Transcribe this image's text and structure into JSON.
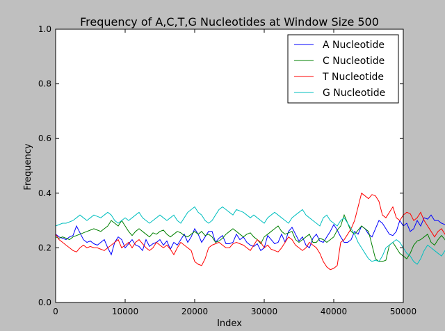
{
  "chart_data": {
    "type": "line",
    "title": "Frequency of A,C,T,G Nucleotides at Window Size 500",
    "xlabel": "Index",
    "ylabel": "Frequency",
    "xlim": [
      0,
      50000
    ],
    "ylim": [
      0.0,
      1.0
    ],
    "xticks": [
      0,
      10000,
      20000,
      30000,
      40000,
      50000
    ],
    "xtick_labels": [
      "0",
      "10000",
      "20000",
      "30000",
      "40000",
      "50000"
    ],
    "yticks": [
      0.0,
      0.2,
      0.4,
      0.6,
      0.8,
      1.0
    ],
    "ytick_labels": [
      "0.0",
      "0.2",
      "0.4",
      "0.6",
      "0.8",
      "1.0"
    ],
    "grid": false,
    "legend_position": "top-right",
    "x_step": 500,
    "series": [
      {
        "name": "A Nucleotide",
        "color": "#0000ff",
        "values": [
          0.25,
          0.24,
          0.235,
          0.23,
          0.24,
          0.245,
          0.28,
          0.255,
          0.23,
          0.22,
          0.225,
          0.215,
          0.21,
          0.22,
          0.23,
          0.2,
          0.175,
          0.22,
          0.24,
          0.23,
          0.2,
          0.215,
          0.23,
          0.21,
          0.205,
          0.19,
          0.23,
          0.205,
          0.215,
          0.22,
          0.23,
          0.21,
          0.225,
          0.195,
          0.22,
          0.21,
          0.23,
          0.25,
          0.22,
          0.24,
          0.27,
          0.25,
          0.22,
          0.24,
          0.26,
          0.26,
          0.22,
          0.235,
          0.245,
          0.215,
          0.215,
          0.22,
          0.25,
          0.23,
          0.24,
          0.22,
          0.21,
          0.205,
          0.215,
          0.19,
          0.2,
          0.245,
          0.23,
          0.215,
          0.22,
          0.25,
          0.22,
          0.26,
          0.275,
          0.25,
          0.225,
          0.24,
          0.21,
          0.2,
          0.235,
          0.25,
          0.225,
          0.22,
          0.24,
          0.26,
          0.285,
          0.265,
          0.24,
          0.22,
          0.22,
          0.23,
          0.26,
          0.25,
          0.28,
          0.27,
          0.25,
          0.24,
          0.27,
          0.3,
          0.29,
          0.27,
          0.25,
          0.245,
          0.26,
          0.3,
          0.28,
          0.29,
          0.26,
          0.27,
          0.3,
          0.28,
          0.31,
          0.305,
          0.32,
          0.3,
          0.3,
          0.29,
          0.285,
          0.28,
          0.27,
          0.265,
          0.285,
          0.27,
          0.25,
          0.24,
          0.25,
          0.22,
          0.23,
          0.245,
          0.25,
          0.24,
          0.225,
          0.215,
          0.23,
          0.24,
          0.26,
          0.27,
          0.25,
          0.23,
          0.22,
          0.225,
          0.215,
          0.23,
          0.245,
          0.24,
          0.26,
          0.27,
          0.25,
          0.23,
          0.24,
          0.22,
          0.235,
          0.25,
          0.27,
          0.28,
          0.275,
          0.26,
          0.25,
          0.23,
          0.24,
          0.27,
          0.3,
          0.31,
          0.33,
          0.31,
          0.3,
          0.285,
          0.28,
          0.29,
          0.32,
          0.315,
          0.3,
          0.29,
          0.27,
          0.26,
          0.245,
          0.235,
          0.25,
          0.27,
          0.29,
          0.3,
          0.31,
          0.32,
          0.33,
          0.34,
          0.33,
          0.32,
          0.31,
          0.3,
          0.29,
          0.29,
          0.28,
          0.27,
          0.26,
          0.28,
          0.27,
          0.26,
          0.275,
          0.285,
          0.29,
          0.3,
          0.31,
          0.28,
          0.23
        ]
      },
      {
        "name": "C Nucleotide",
        "color": "#008000",
        "values": [
          0.24,
          0.235,
          0.24,
          0.235,
          0.23,
          0.24,
          0.245,
          0.25,
          0.255,
          0.26,
          0.265,
          0.27,
          0.265,
          0.26,
          0.27,
          0.28,
          0.3,
          0.29,
          0.28,
          0.3,
          0.28,
          0.26,
          0.245,
          0.26,
          0.27,
          0.26,
          0.25,
          0.24,
          0.255,
          0.25,
          0.26,
          0.265,
          0.25,
          0.24,
          0.25,
          0.26,
          0.255,
          0.245,
          0.24,
          0.25,
          0.26,
          0.25,
          0.26,
          0.245,
          0.25,
          0.24,
          0.22,
          0.225,
          0.235,
          0.25,
          0.26,
          0.27,
          0.26,
          0.25,
          0.24,
          0.25,
          0.255,
          0.24,
          0.23,
          0.215,
          0.24,
          0.25,
          0.26,
          0.27,
          0.28,
          0.26,
          0.25,
          0.255,
          0.26,
          0.23,
          0.22,
          0.23,
          0.24,
          0.25,
          0.22,
          0.22,
          0.235,
          0.23,
          0.22,
          0.23,
          0.24,
          0.265,
          0.28,
          0.32,
          0.29,
          0.26,
          0.25,
          0.265,
          0.28,
          0.27,
          0.26,
          0.21,
          0.16,
          0.15,
          0.15,
          0.155,
          0.21,
          0.22,
          0.2,
          0.18,
          0.17,
          0.16,
          0.18,
          0.21,
          0.225,
          0.23,
          0.24,
          0.25,
          0.22,
          0.21,
          0.23,
          0.245,
          0.23,
          0.2,
          0.18,
          0.24,
          0.29,
          0.23,
          0.2,
          0.21,
          0.22,
          0.25,
          0.26,
          0.24,
          0.23,
          0.22,
          0.21,
          0.22,
          0.25,
          0.24,
          0.21,
          0.2,
          0.22,
          0.24,
          0.26,
          0.25,
          0.17,
          0.18,
          0.23,
          0.25,
          0.22,
          0.21,
          0.2,
          0.23,
          0.24,
          0.22,
          0.23,
          0.24,
          0.245,
          0.23,
          0.21,
          0.22,
          0.235,
          0.22,
          0.21,
          0.2,
          0.24,
          0.26,
          0.25,
          0.27,
          0.26,
          0.24,
          0.22,
          0.21,
          0.2,
          0.22,
          0.25,
          0.24,
          0.23,
          0.22,
          0.2,
          0.18,
          0.2,
          0.22,
          0.23,
          0.22,
          0.21,
          0.2,
          0.195,
          0.21,
          0.24,
          0.25,
          0.23,
          0.22,
          0.21,
          0.2,
          0.21,
          0.22,
          0.2,
          0.19,
          0.21,
          0.23,
          0.25,
          0.24,
          0.23,
          0.21,
          0.19,
          0.17,
          0.165,
          0.17,
          0.18,
          0.19
        ]
      },
      {
        "name": "T Nucleotide",
        "color": "#ff0000",
        "values": [
          0.25,
          0.23,
          0.22,
          0.21,
          0.2,
          0.19,
          0.185,
          0.2,
          0.21,
          0.2,
          0.205,
          0.2,
          0.2,
          0.195,
          0.19,
          0.2,
          0.21,
          0.22,
          0.23,
          0.2,
          0.21,
          0.22,
          0.2,
          0.22,
          0.23,
          0.215,
          0.2,
          0.19,
          0.2,
          0.22,
          0.21,
          0.2,
          0.21,
          0.195,
          0.175,
          0.2,
          0.22,
          0.21,
          0.2,
          0.19,
          0.15,
          0.14,
          0.135,
          0.16,
          0.2,
          0.21,
          0.215,
          0.22,
          0.21,
          0.2,
          0.2,
          0.215,
          0.22,
          0.215,
          0.21,
          0.2,
          0.19,
          0.21,
          0.23,
          0.22,
          0.2,
          0.21,
          0.195,
          0.19,
          0.185,
          0.2,
          0.22,
          0.24,
          0.23,
          0.21,
          0.2,
          0.19,
          0.2,
          0.22,
          0.21,
          0.2,
          0.18,
          0.15,
          0.13,
          0.12,
          0.125,
          0.135,
          0.22,
          0.23,
          0.25,
          0.27,
          0.3,
          0.35,
          0.4,
          0.39,
          0.38,
          0.395,
          0.39,
          0.37,
          0.32,
          0.31,
          0.33,
          0.35,
          0.31,
          0.3,
          0.32,
          0.33,
          0.325,
          0.3,
          0.31,
          0.33,
          0.3,
          0.28,
          0.26,
          0.24,
          0.26,
          0.27,
          0.25,
          0.23,
          0.24,
          0.26,
          0.28,
          0.27,
          0.26,
          0.25,
          0.27,
          0.29,
          0.3,
          0.33,
          0.32,
          0.31,
          0.3,
          0.32,
          0.31,
          0.3,
          0.28,
          0.26,
          0.3,
          0.31,
          0.29,
          0.27,
          0.26,
          0.24,
          0.23,
          0.26,
          0.27,
          0.25,
          0.22,
          0.2,
          0.24,
          0.245,
          0.22,
          0.21,
          0.2,
          0.22,
          0.215,
          0.18,
          0.165,
          0.2,
          0.22,
          0.21,
          0.23,
          0.22,
          0.21,
          0.2,
          0.22,
          0.23,
          0.26,
          0.29,
          0.3,
          0.32,
          0.34,
          0.35,
          0.33,
          0.3,
          0.28,
          0.31,
          0.32,
          0.3,
          0.27,
          0.25,
          0.24,
          0.22,
          0.215,
          0.2,
          0.19,
          0.195,
          0.21,
          0.23,
          0.25,
          0.27,
          0.3,
          0.31,
          0.33,
          0.3,
          0.28,
          0.27,
          0.26,
          0.28,
          0.3,
          0.32,
          0.35,
          0.33,
          0.31,
          0.33,
          0.35
        ]
      },
      {
        "name": "G Nucleotide",
        "color": "#00bfbf",
        "values": [
          0.28,
          0.285,
          0.29,
          0.29,
          0.295,
          0.3,
          0.31,
          0.32,
          0.31,
          0.3,
          0.31,
          0.32,
          0.315,
          0.31,
          0.32,
          0.33,
          0.32,
          0.3,
          0.29,
          0.3,
          0.31,
          0.3,
          0.31,
          0.32,
          0.33,
          0.31,
          0.3,
          0.29,
          0.3,
          0.31,
          0.32,
          0.31,
          0.3,
          0.31,
          0.32,
          0.3,
          0.29,
          0.31,
          0.33,
          0.34,
          0.35,
          0.33,
          0.32,
          0.3,
          0.29,
          0.3,
          0.32,
          0.34,
          0.35,
          0.34,
          0.33,
          0.32,
          0.34,
          0.335,
          0.33,
          0.32,
          0.31,
          0.32,
          0.31,
          0.3,
          0.29,
          0.31,
          0.32,
          0.33,
          0.32,
          0.31,
          0.3,
          0.29,
          0.31,
          0.32,
          0.33,
          0.34,
          0.32,
          0.31,
          0.3,
          0.29,
          0.28,
          0.31,
          0.32,
          0.3,
          0.29,
          0.28,
          0.3,
          0.31,
          0.29,
          0.27,
          0.25,
          0.22,
          0.2,
          0.18,
          0.16,
          0.15,
          0.155,
          0.15,
          0.17,
          0.2,
          0.21,
          0.22,
          0.23,
          0.22,
          0.2,
          0.18,
          0.17,
          0.15,
          0.14,
          0.16,
          0.19,
          0.21,
          0.2,
          0.19,
          0.18,
          0.17,
          0.19,
          0.2,
          0.21,
          0.22,
          0.2,
          0.19,
          0.18,
          0.2,
          0.22,
          0.23,
          0.24,
          0.26,
          0.25,
          0.24,
          0.23,
          0.22,
          0.21,
          0.2,
          0.22,
          0.23,
          0.21,
          0.2,
          0.19,
          0.2,
          0.22,
          0.21,
          0.2,
          0.19,
          0.2,
          0.21,
          0.22,
          0.2,
          0.19,
          0.21,
          0.23,
          0.24,
          0.26,
          0.27,
          0.28,
          0.27,
          0.25,
          0.26,
          0.28,
          0.29,
          0.27,
          0.25,
          0.24,
          0.22,
          0.21,
          0.2,
          0.22,
          0.24,
          0.25,
          0.23,
          0.22,
          0.24,
          0.26,
          0.27,
          0.28,
          0.29,
          0.28,
          0.27,
          0.26,
          0.25,
          0.24,
          0.22,
          0.21,
          0.22,
          0.24,
          0.25,
          0.23,
          0.22,
          0.24,
          0.26,
          0.27,
          0.29,
          0.28,
          0.27,
          0.26,
          0.24,
          0.22,
          0.21,
          0.22,
          0.23,
          0.21,
          0.19,
          0.2,
          0.22,
          0.24,
          0.26
        ]
      }
    ]
  }
}
